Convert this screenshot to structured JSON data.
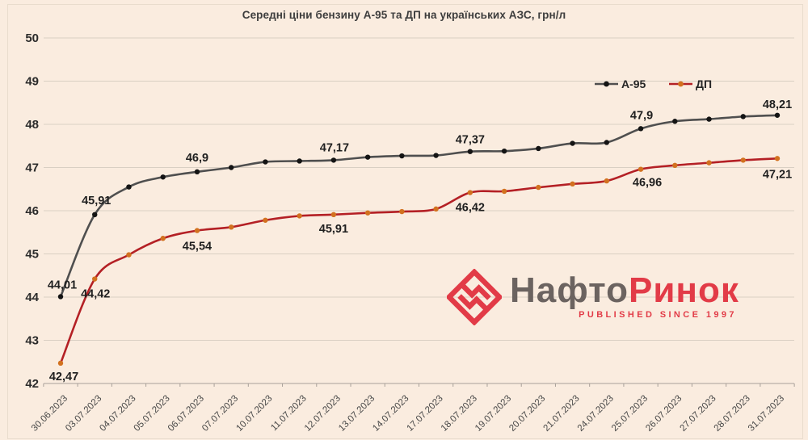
{
  "colors": {
    "background": "#faecdf",
    "grid": "#d9cfc3",
    "axis": "#a8a099",
    "label_dark": "#1f1f1f",
    "xlabel": "#474747",
    "title": "#3d3d3d"
  },
  "logo": {
    "name_gray": "Нафто",
    "name_red": "Ринок",
    "tagline": "PUBLISHED SINCE 1997",
    "gray": "#6b6360",
    "red": "#e23b47"
  },
  "chart_data": {
    "type": "line",
    "title": "Середні ціни бензину А-95 та ДП на українських АЗС, грн/л",
    "xlabel": "",
    "ylabel": "",
    "ylim": [
      42,
      50
    ],
    "ytick_step": 1,
    "grid": true,
    "legend_position": "inside-top-right",
    "categories": [
      "30.06.2023",
      "03.07.2023",
      "04.07.2023",
      "05.07.2023",
      "06.07.2023",
      "07.07.2023",
      "10.07.2023",
      "11.07.2023",
      "12.07.2023",
      "13.07.2023",
      "14.07.2023",
      "17.07.2023",
      "18.07.2023",
      "19.07.2023",
      "20.07.2023",
      "21.07.2023",
      "24.07.2023",
      "25.07.2023",
      "26.07.2023",
      "27.07.2023",
      "28.07.2023",
      "31.07.2023"
    ],
    "series": [
      {
        "key": "a95",
        "name": "А-95",
        "color": "#4f4f4f",
        "marker_color": "#141414",
        "values": [
          44.01,
          45.91,
          46.55,
          46.78,
          46.9,
          47.0,
          47.13,
          47.15,
          47.17,
          47.24,
          47.27,
          47.28,
          47.37,
          47.38,
          47.44,
          47.56,
          47.58,
          47.9,
          48.07,
          48.12,
          48.18,
          48.21
        ],
        "labels": [
          {
            "index": 0,
            "text": "44,01",
            "dx": 2,
            "dy": -10
          },
          {
            "index": 1,
            "text": "45,91",
            "dx": 2,
            "dy": -13
          },
          {
            "index": 4,
            "text": "46,9",
            "dx": 0,
            "dy": -13
          },
          {
            "index": 8,
            "text": "47,17",
            "dx": 1,
            "dy": -11
          },
          {
            "index": 12,
            "text": "47,37",
            "dx": 0,
            "dy": -10
          },
          {
            "index": 17,
            "text": "47,9",
            "dx": 1,
            "dy": -12
          },
          {
            "index": 21,
            "text": "48,21",
            "dx": 0,
            "dy": -9
          }
        ]
      },
      {
        "key": "dp",
        "name": "ДП",
        "color": "#b42025",
        "marker_color": "#d2711f",
        "values": [
          42.47,
          44.42,
          44.98,
          45.36,
          45.54,
          45.62,
          45.78,
          45.88,
          45.91,
          45.95,
          45.98,
          46.04,
          46.42,
          46.45,
          46.54,
          46.62,
          46.69,
          46.96,
          47.05,
          47.11,
          47.17,
          47.21
        ],
        "labels": [
          {
            "index": 0,
            "text": "42,47",
            "dx": 4,
            "dy": 21
          },
          {
            "index": 1,
            "text": "44,42",
            "dx": 1,
            "dy": 23
          },
          {
            "index": 4,
            "text": "45,54",
            "dx": 0,
            "dy": 24
          },
          {
            "index": 8,
            "text": "45,91",
            "dx": 0,
            "dy": 22
          },
          {
            "index": 12,
            "text": "46,42",
            "dx": 0,
            "dy": 23
          },
          {
            "index": 17,
            "text": "46,96",
            "dx": 8,
            "dy": 21
          },
          {
            "index": 21,
            "text": "47,21",
            "dx": 0,
            "dy": 24
          }
        ]
      }
    ]
  }
}
